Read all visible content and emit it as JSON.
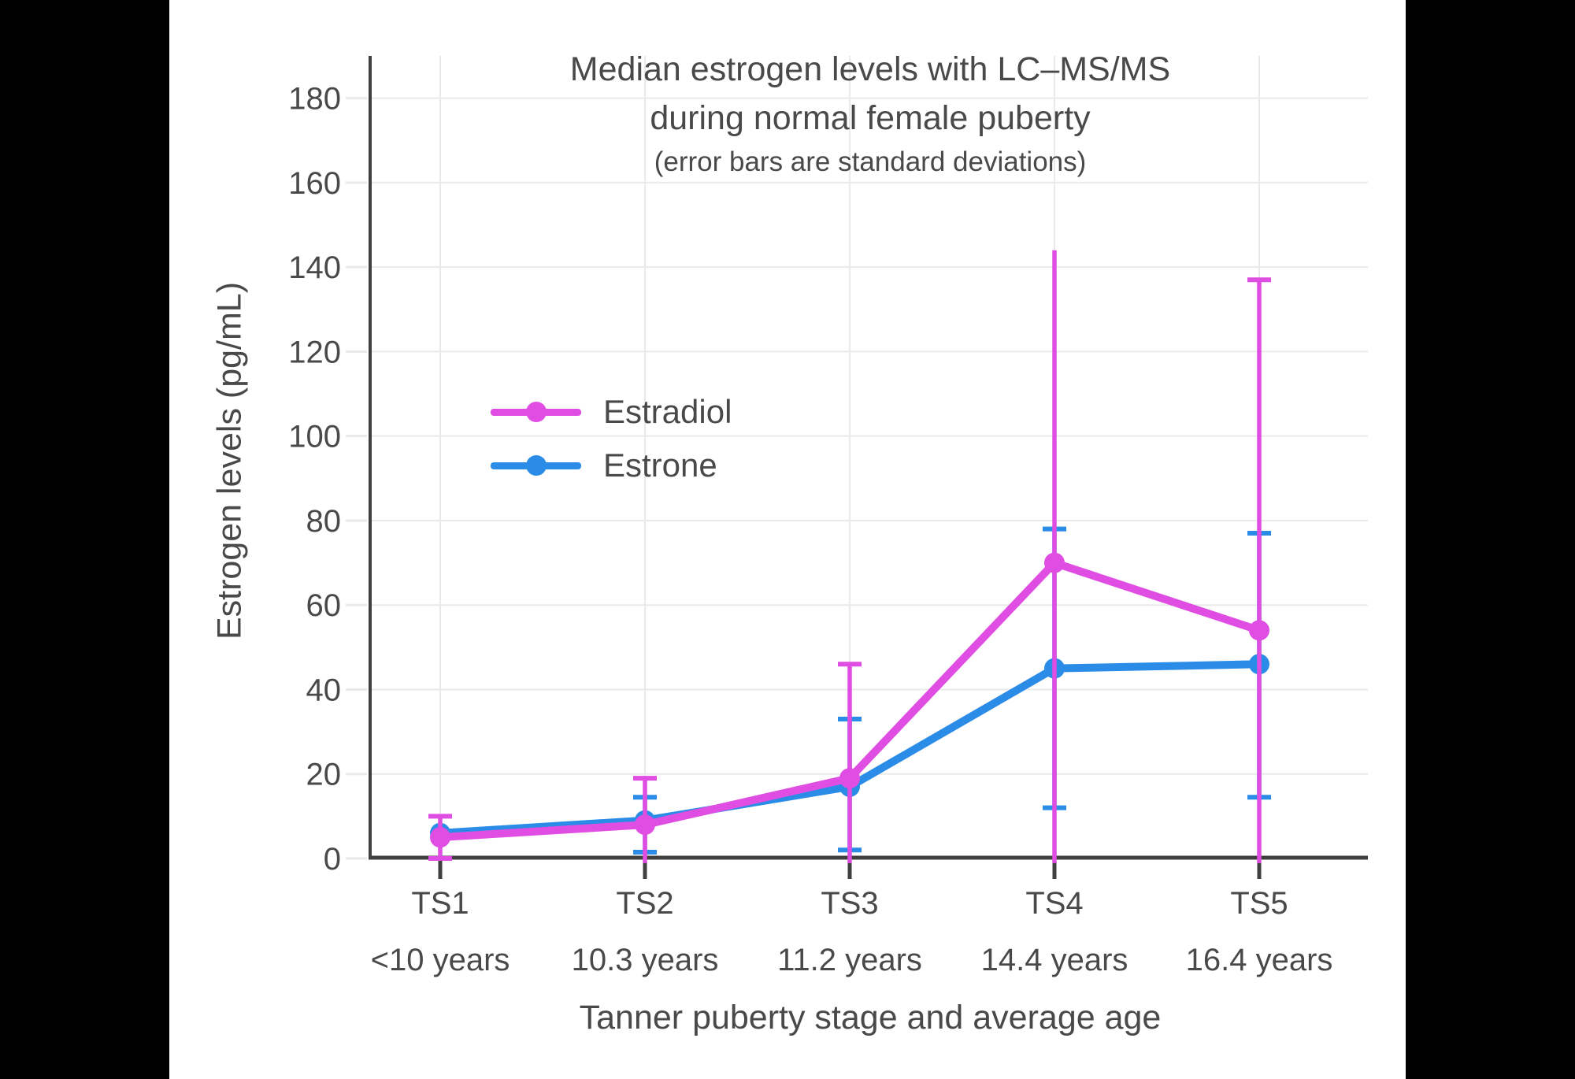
{
  "frame": {
    "background": "#000000",
    "canvas_background": "#ffffff"
  },
  "colors": {
    "text": "#494949",
    "axis": "#3f3f3f",
    "grid": "#eaeaea"
  },
  "chart_data": {
    "type": "line",
    "title_line1": "Median estrogen levels with LC–MS/MS",
    "title_line2": "during normal female puberty",
    "subtitle": "(error bars are standard deviations)",
    "xlabel": "Tanner puberty stage and average age",
    "ylabel": "Estrogen levels (pg/mL)",
    "ylim": [
      0,
      190
    ],
    "yticks": [
      0,
      20,
      40,
      60,
      80,
      100,
      120,
      140,
      160,
      180
    ],
    "grid": true,
    "legend_position": "inside-upper-left",
    "categories": [
      {
        "stage": "TS1",
        "age": "<10 years"
      },
      {
        "stage": "TS2",
        "age": "10.3 years"
      },
      {
        "stage": "TS3",
        "age": "11.2 years"
      },
      {
        "stage": "TS4",
        "age": "14.4 years"
      },
      {
        "stage": "TS5",
        "age": "16.4 years"
      }
    ],
    "series": [
      {
        "name": "Estradiol",
        "color": "#e04de2",
        "values": [
          5,
          8,
          19,
          70,
          54
        ],
        "error_upper": [
          10,
          19,
          46,
          144,
          137
        ],
        "error_lower": [
          0,
          null,
          null,
          null,
          null
        ],
        "upper_cap": [
          true,
          true,
          true,
          false,
          true
        ]
      },
      {
        "name": "Estrone",
        "color": "#2b8ce8",
        "values": [
          6,
          9,
          17,
          45,
          46
        ],
        "error_upper": [
          null,
          14.5,
          33,
          78,
          77
        ],
        "error_lower": [
          null,
          1.5,
          2,
          12,
          14.5
        ],
        "upper_cap": [
          false,
          true,
          true,
          true,
          true
        ]
      }
    ]
  }
}
